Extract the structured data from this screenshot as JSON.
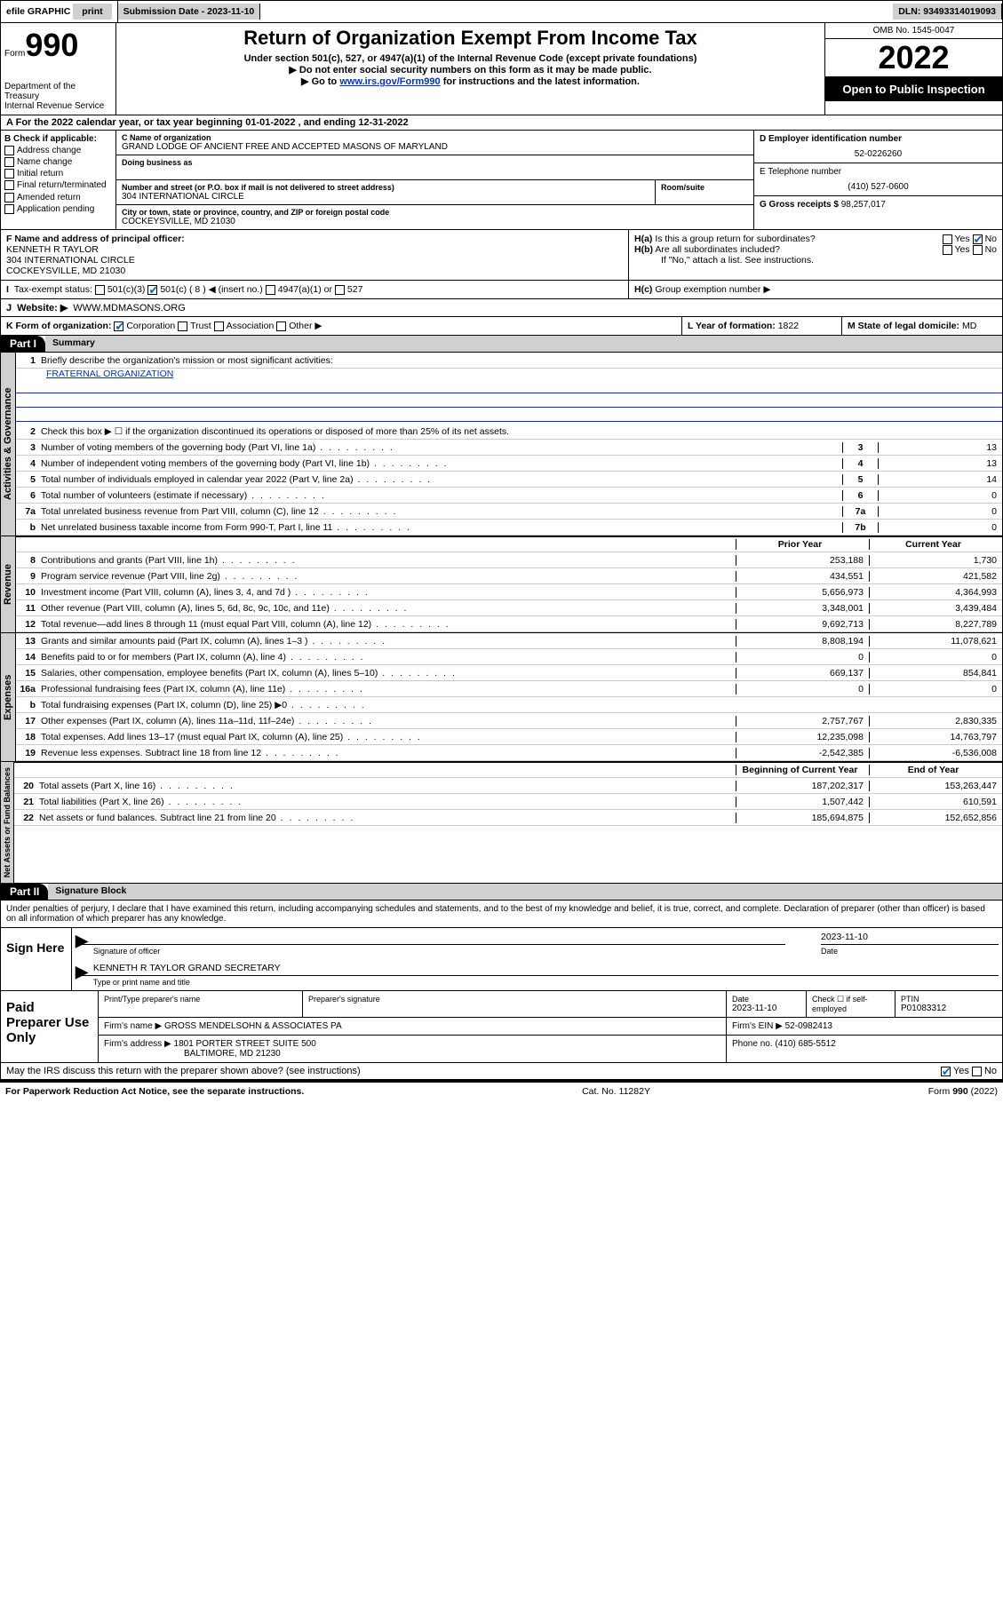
{
  "topbar": {
    "efile": "efile GRAPHIC",
    "print": "print",
    "sub_label": "Submission Date - ",
    "sub_date": "2023-11-10",
    "dln": "DLN: 93493314019093"
  },
  "header": {
    "form": "Form",
    "num": "990",
    "dept": "Department of the Treasury",
    "irs": "Internal Revenue Service",
    "title": "Return of Organization Exempt From Income Tax",
    "sub1": "Under section 501(c), 527, or 4947(a)(1) of the Internal Revenue Code (except private foundations)",
    "sub2": "Do not enter social security numbers on this form as it may be made public.",
    "sub3a": "Go to ",
    "sub3b": "www.irs.gov/Form990",
    "sub3c": " for instructions and the latest information.",
    "omb": "OMB No. 1545-0047",
    "year": "2022",
    "otp": "Open to Public Inspection"
  },
  "A": "For the 2022 calendar year, or tax year beginning 01-01-2022   , and ending 12-31-2022",
  "B": {
    "hdr": "B Check if applicable:",
    "items": [
      "Address change",
      "Name change",
      "Initial return",
      "Final return/terminated",
      "Amended return",
      "Application pending"
    ]
  },
  "C": {
    "name_lbl": "C Name of organization",
    "name": "GRAND LODGE OF ANCIENT FREE AND ACCEPTED MASONS OF MARYLAND",
    "dba_lbl": "Doing business as",
    "street_lbl": "Number and street (or P.O. box if mail is not delivered to street address)",
    "room_lbl": "Room/suite",
    "street": "304 INTERNATIONAL CIRCLE",
    "city_lbl": "City or town, state or province, country, and ZIP or foreign postal code",
    "city": "COCKEYSVILLE, MD  21030"
  },
  "D": {
    "lbl": "D Employer identification number",
    "val": "52-0226260"
  },
  "E": {
    "lbl": "E Telephone number",
    "val": "(410) 527-0600"
  },
  "G": {
    "lbl": "G Gross receipts $",
    "val": "98,257,017"
  },
  "F": {
    "lbl": "F  Name and address of principal officer:",
    "name": "KENNETH R TAYLOR",
    "addr1": "304 INTERNATIONAL CIRCLE",
    "addr2": "COCKEYSVILLE, MD  21030"
  },
  "H": {
    "a": "Is this a group return for subordinates?",
    "b": "Are all subordinates included?",
    "b2": "If \"No,\" attach a list. See instructions.",
    "c": "Group exemption number ▶"
  },
  "I": {
    "lbl": "Tax-exempt status:",
    "o1": "501(c)(3)",
    "o2": "501(c) ( 8 ) ◀ (insert no.)",
    "o3": "4947(a)(1) or",
    "o4": "527"
  },
  "J": {
    "lbl": "Website: ▶",
    "val": "WWW.MDMASONS.ORG"
  },
  "K": {
    "lbl": "K Form of organization:",
    "o1": "Corporation",
    "o2": "Trust",
    "o3": "Association",
    "o4": "Other ▶"
  },
  "L": {
    "lbl": "L Year of formation:",
    "val": "1822"
  },
  "M": {
    "lbl": "M State of legal domicile:",
    "val": "MD"
  },
  "part1": {
    "hdr": "Part I",
    "title": "Summary",
    "l1": "Briefly describe the organization's mission or most significant activities:",
    "l1v": "FRATERNAL ORGANIZATION",
    "l2": "Check this box ▶ ☐  if the organization discontinued its operations or disposed of more than 25% of its net assets.",
    "activities": {
      "tab": "Activities & Governance",
      "rows": [
        {
          "n": "3",
          "t": "Number of voting members of the governing body (Part VI, line 1a)",
          "b": "3",
          "v": "13"
        },
        {
          "n": "4",
          "t": "Number of independent voting members of the governing body (Part VI, line 1b)",
          "b": "4",
          "v": "13"
        },
        {
          "n": "5",
          "t": "Total number of individuals employed in calendar year 2022 (Part V, line 2a)",
          "b": "5",
          "v": "14"
        },
        {
          "n": "6",
          "t": "Total number of volunteers (estimate if necessary)",
          "b": "6",
          "v": "0"
        },
        {
          "n": "7a",
          "t": "Total unrelated business revenue from Part VIII, column (C), line 12",
          "b": "7a",
          "v": "0"
        },
        {
          "n": "b",
          "t": "Net unrelated business taxable income from Form 990-T, Part I, line 11",
          "b": "7b",
          "v": "0"
        }
      ]
    },
    "revenue": {
      "tab": "Revenue",
      "th1": "Prior Year",
      "th2": "Current Year",
      "rows": [
        {
          "n": "8",
          "t": "Contributions and grants (Part VIII, line 1h)",
          "p": "253,188",
          "c": "1,730"
        },
        {
          "n": "9",
          "t": "Program service revenue (Part VIII, line 2g)",
          "p": "434,551",
          "c": "421,582"
        },
        {
          "n": "10",
          "t": "Investment income (Part VIII, column (A), lines 3, 4, and 7d )",
          "p": "5,656,973",
          "c": "4,364,993"
        },
        {
          "n": "11",
          "t": "Other revenue (Part VIII, column (A), lines 5, 6d, 8c, 9c, 10c, and 11e)",
          "p": "3,348,001",
          "c": "3,439,484"
        },
        {
          "n": "12",
          "t": "Total revenue—add lines 8 through 11 (must equal Part VIII, column (A), line 12)",
          "p": "9,692,713",
          "c": "8,227,789"
        }
      ]
    },
    "expenses": {
      "tab": "Expenses",
      "rows": [
        {
          "n": "13",
          "t": "Grants and similar amounts paid (Part IX, column (A), lines 1–3 )",
          "p": "8,808,194",
          "c": "11,078,621"
        },
        {
          "n": "14",
          "t": "Benefits paid to or for members (Part IX, column (A), line 4)",
          "p": "0",
          "c": "0"
        },
        {
          "n": "15",
          "t": "Salaries, other compensation, employee benefits (Part IX, column (A), lines 5–10)",
          "p": "669,137",
          "c": "854,841"
        },
        {
          "n": "16a",
          "t": "Professional fundraising fees (Part IX, column (A), line 11e)",
          "p": "0",
          "c": "0"
        },
        {
          "n": "b",
          "t": "Total fundraising expenses (Part IX, column (D), line 25) ▶0",
          "p": "",
          "c": "",
          "gray": true
        },
        {
          "n": "17",
          "t": "Other expenses (Part IX, column (A), lines 11a–11d, 11f–24e)",
          "p": "2,757,767",
          "c": "2,830,335"
        },
        {
          "n": "18",
          "t": "Total expenses. Add lines 13–17 (must equal Part IX, column (A), line 25)",
          "p": "12,235,098",
          "c": "14,763,797"
        },
        {
          "n": "19",
          "t": "Revenue less expenses. Subtract line 18 from line 12",
          "p": "-2,542,385",
          "c": "-6,536,008"
        }
      ]
    },
    "netassets": {
      "tab": "Net Assets or Fund Balances",
      "th1": "Beginning of Current Year",
      "th2": "End of Year",
      "rows": [
        {
          "n": "20",
          "t": "Total assets (Part X, line 16)",
          "p": "187,202,317",
          "c": "153,263,447"
        },
        {
          "n": "21",
          "t": "Total liabilities (Part X, line 26)",
          "p": "1,507,442",
          "c": "610,591"
        },
        {
          "n": "22",
          "t": "Net assets or fund balances. Subtract line 21 from line 20",
          "p": "185,694,875",
          "c": "152,652,856"
        }
      ]
    }
  },
  "part2": {
    "hdr": "Part II",
    "title": "Signature Block",
    "decl": "Under penalties of perjury, I declare that I have examined this return, including accompanying schedules and statements, and to the best of my knowledge and belief, it is true, correct, and complete. Declaration of preparer (other than officer) is based on all information of which preparer has any knowledge."
  },
  "sign": {
    "lbl": "Sign Here",
    "sig_of": "Signature of officer",
    "date": "2023-11-10",
    "date_lbl": "Date",
    "name": "KENNETH R TAYLOR  GRAND SECRETARY",
    "name_lbl": "Type or print name and title"
  },
  "prep": {
    "lbl": "Paid Preparer Use Only",
    "h1": "Print/Type preparer's name",
    "h2": "Preparer's signature",
    "h3": "Date",
    "h3v": "2023-11-10",
    "h4": "Check ☐ if self-employed",
    "h5": "PTIN",
    "h5v": "P01083312",
    "firm_lbl": "Firm's name    ▶",
    "firm": "GROSS MENDELSOHN & ASSOCIATES PA",
    "ein_lbl": "Firm's EIN ▶",
    "ein": "52-0982413",
    "addr_lbl": "Firm's address ▶",
    "addr1": "1801 PORTER STREET SUITE 500",
    "addr2": "BALTIMORE, MD  21230",
    "ph_lbl": "Phone no.",
    "ph": "(410) 685-5512",
    "discuss": "May the IRS discuss this return with the preparer shown above? (see instructions)"
  },
  "footer": {
    "l": "For Paperwork Reduction Act Notice, see the separate instructions.",
    "m": "Cat. No. 11282Y",
    "r": "Form 990 (2022)"
  },
  "yn": {
    "yes": "Yes",
    "no": "No"
  }
}
